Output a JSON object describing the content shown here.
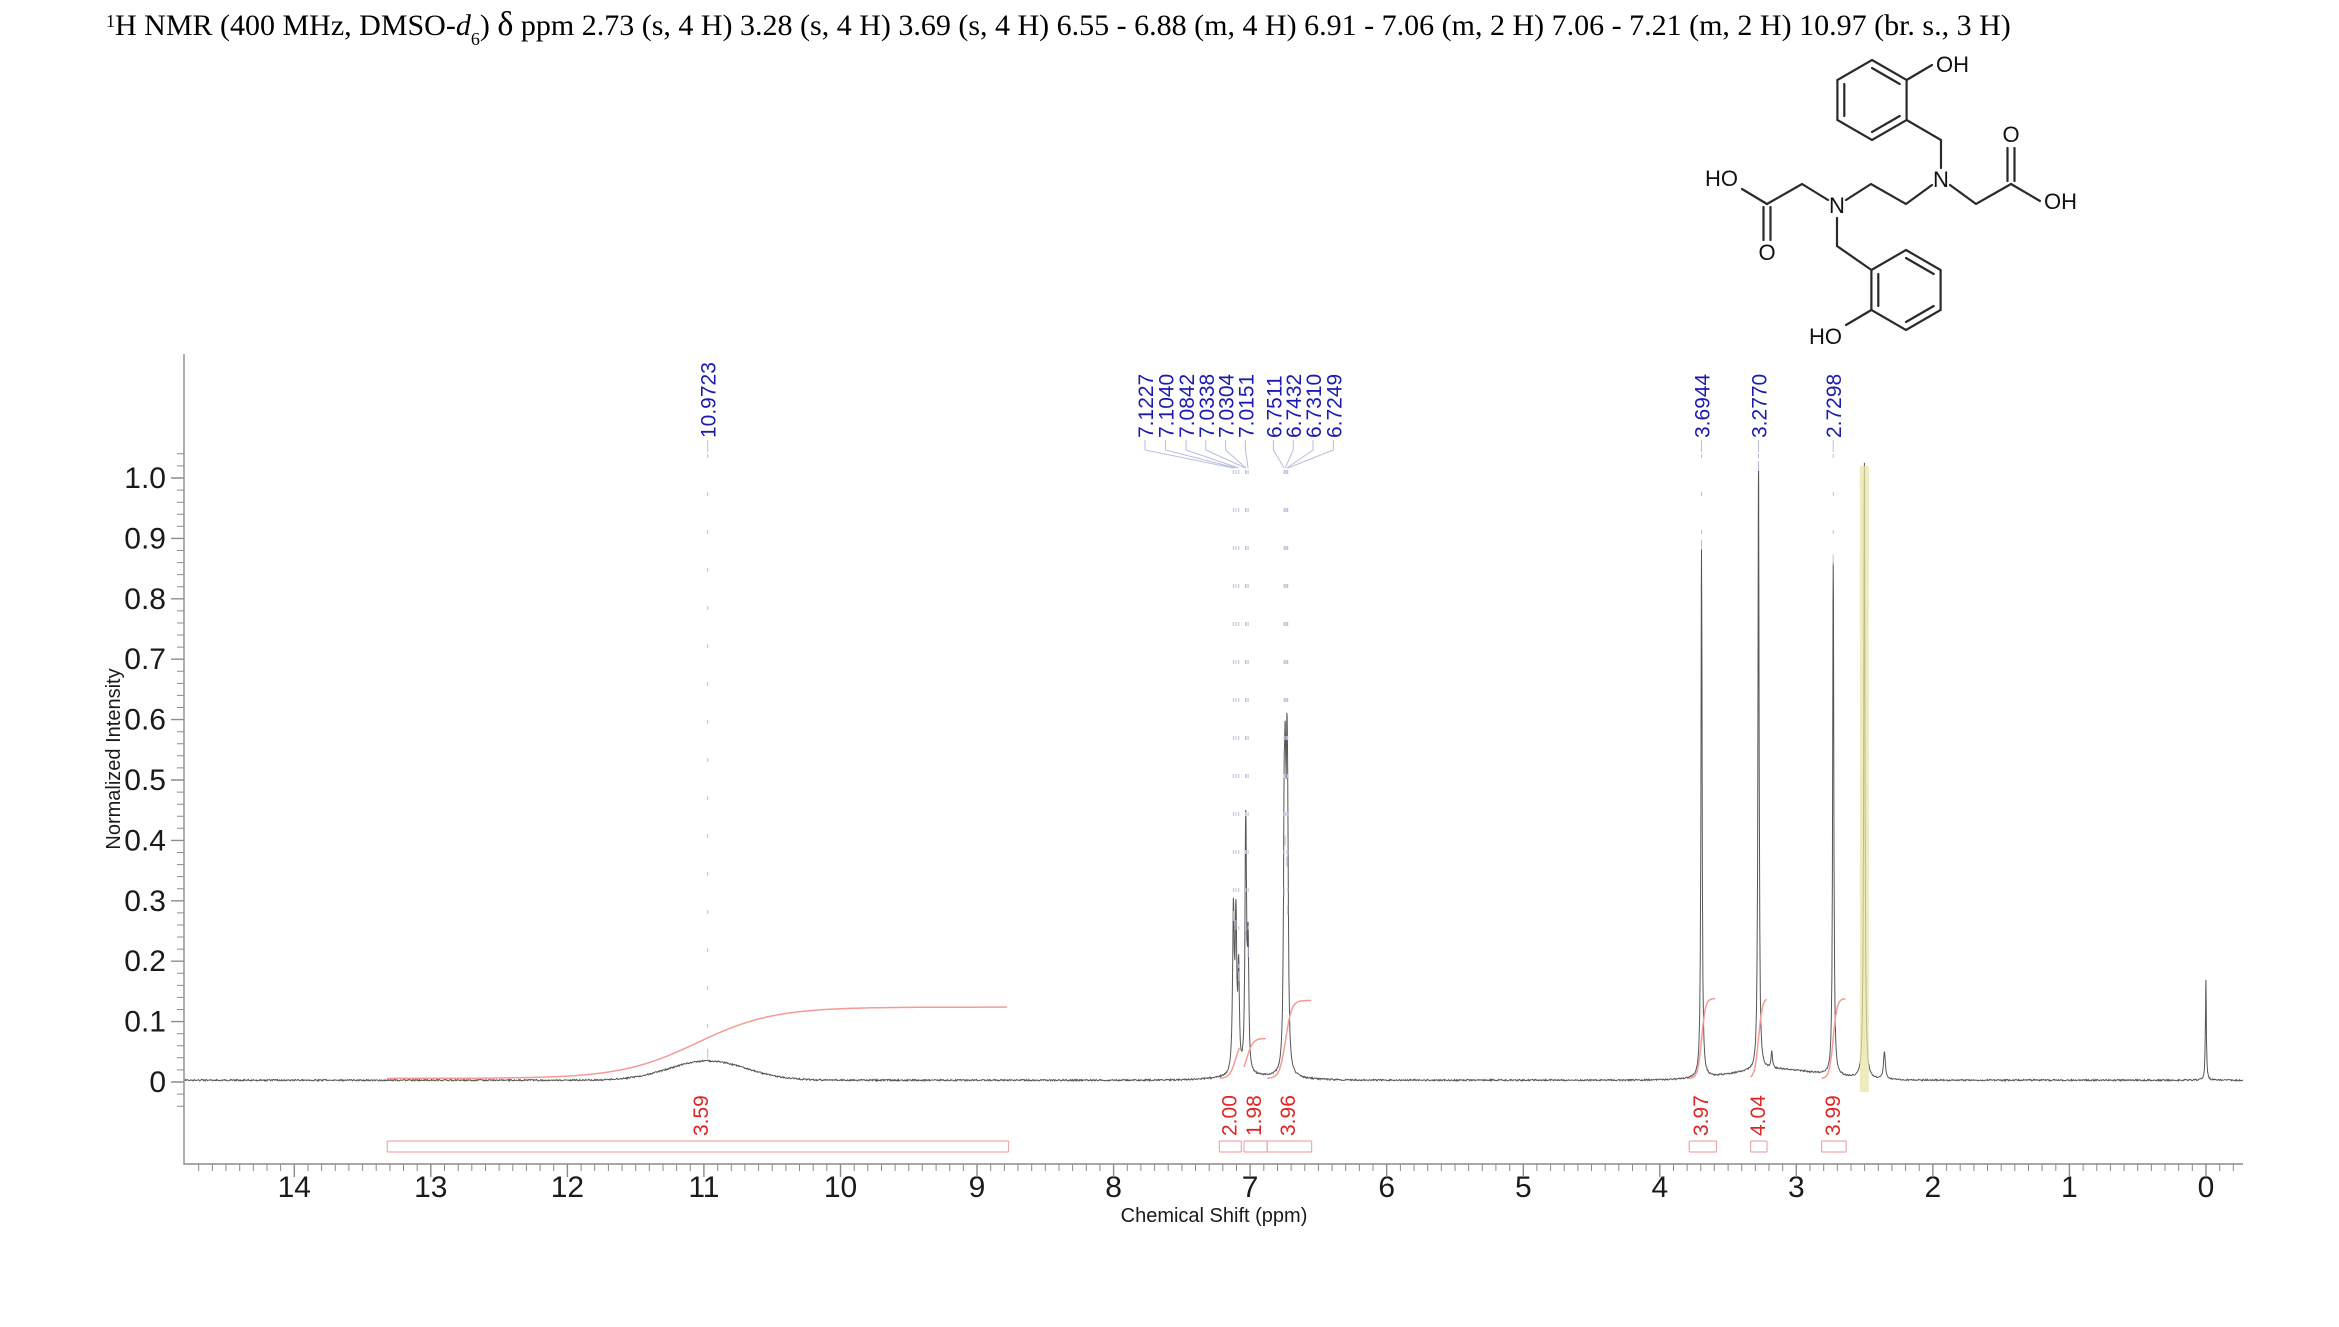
{
  "title": {
    "sup": "1",
    "part1": "H NMR (400 MHz, DMSO-",
    "solvent_italic": "d",
    "solvent_sub": "6",
    "part2": ") ",
    "delta": "δ",
    "part3": " ppm 2.73 (s, 4 H) 3.28 (s, 4 H) 3.69 (s, 4 H) 6.55 - 6.88 (m, 4 H) 6.91 - 7.06 (m, 2 H) 7.06 - 7.21 (m, 2 H) 10.97 (br. s., 3 H)"
  },
  "structure": {
    "labels": {
      "oh_top": "OH",
      "o_right": "O",
      "oh_right": "OH",
      "ho_left": "HO",
      "o_left": "O",
      "n_right": "N",
      "n_left": "N",
      "ho_bottom": "HO"
    }
  },
  "chart_data": {
    "type": "line",
    "title": "",
    "xlabel": "Chemical Shift (ppm)",
    "ylabel": "Normalized Intensity",
    "xlim": [
      14.8,
      -0.27
    ],
    "ylim": [
      0,
      1.2
    ],
    "x_axis_reversed": true,
    "grid": false,
    "x_ticks": [
      14,
      13,
      12,
      11,
      10,
      9,
      8,
      7,
      6,
      5,
      4,
      3,
      2,
      1,
      0
    ],
    "y_ticks": [
      {
        "v": 0,
        "label": "0"
      },
      {
        "v": 0.1,
        "label": "0.1"
      },
      {
        "v": 0.2,
        "label": "0.2"
      },
      {
        "v": 0.3,
        "label": "0.3"
      },
      {
        "v": 0.4,
        "label": "0.4"
      },
      {
        "v": 0.5,
        "label": "0.5"
      },
      {
        "v": 0.6,
        "label": "0.6"
      },
      {
        "v": 0.7,
        "label": "0.7"
      },
      {
        "v": 0.8,
        "label": "0.8"
      },
      {
        "v": 0.9,
        "label": "0.9"
      },
      {
        "v": 1.0,
        "label": "1.0"
      }
    ],
    "peaks": [
      {
        "p": 10.9723,
        "h": 0.032,
        "w": 0.4,
        "g": 1
      },
      {
        "p": 7.1227,
        "h": 0.26,
        "w": 0.007
      },
      {
        "p": 7.104,
        "h": 0.245,
        "w": 0.007
      },
      {
        "p": 7.0842,
        "h": 0.16,
        "w": 0.006
      },
      {
        "p": 7.0338,
        "h": 0.22,
        "w": 0.006
      },
      {
        "p": 7.0304,
        "h": 0.225,
        "w": 0.006
      },
      {
        "p": 7.0151,
        "h": 0.2,
        "w": 0.006
      },
      {
        "p": 6.7511,
        "h": 0.3,
        "w": 0.006
      },
      {
        "p": 6.7432,
        "h": 0.385,
        "w": 0.007
      },
      {
        "p": 6.731,
        "h": 0.35,
        "w": 0.006
      },
      {
        "p": 6.7249,
        "h": 0.27,
        "w": 0.006
      },
      {
        "p": 3.6944,
        "h": 0.875,
        "w": 0.005
      },
      {
        "p": 3.277,
        "h": 1.005,
        "w": 0.005
      },
      {
        "p": 2.7298,
        "h": 0.85,
        "w": 0.005
      },
      {
        "p": 2.502,
        "h": 1.02,
        "w": 0.005
      },
      {
        "p": 2.355,
        "h": 0.045,
        "w": 0.008
      },
      {
        "p": 3.18,
        "h": 0.028,
        "w": 0.006
      },
      {
        "p": 0.001,
        "h": 0.165,
        "w": 0.004
      },
      {
        "p": 3.15,
        "h": 0.018,
        "w": 0.45,
        "g": 1
      },
      {
        "p": 6.95,
        "h": 0.006,
        "w": 0.35,
        "g": 1
      }
    ],
    "peak_labels": [
      {
        "value": "10.9723",
        "ppm": 10.9723,
        "lx": 10.9723
      },
      {
        "value": "7.1227",
        "ppm": 7.1227,
        "lx": 7.77
      },
      {
        "value": "7.1040",
        "ppm": 7.104,
        "lx": 7.62
      },
      {
        "value": "7.0842",
        "ppm": 7.0842,
        "lx": 7.47
      },
      {
        "value": "7.0338",
        "ppm": 7.0338,
        "lx": 7.325
      },
      {
        "value": "7.0304",
        "ppm": 7.0304,
        "lx": 7.18
      },
      {
        "value": "7.0151",
        "ppm": 7.0151,
        "lx": 7.035
      },
      {
        "value": "6.7511",
        "ppm": 6.7511,
        "lx": 6.83
      },
      {
        "value": "6.7432",
        "ppm": 6.7432,
        "lx": 6.685
      },
      {
        "value": "6.7310",
        "ppm": 6.731,
        "lx": 6.54
      },
      {
        "value": "6.7249",
        "ppm": 6.7249,
        "lx": 6.39
      },
      {
        "value": "3.6944",
        "ppm": 3.6944,
        "lx": 3.6944
      },
      {
        "value": "3.2770",
        "ppm": 3.277,
        "lx": 3.277
      },
      {
        "value": "2.7298",
        "ppm": 2.7298,
        "lx": 2.7298
      }
    ],
    "integrals": [
      {
        "label": "3.59",
        "from": 13.32,
        "to": 8.77,
        "h": 0.118,
        "c": 11.05,
        "w": 0.28,
        "lp": 11.03
      },
      {
        "label": "2.00",
        "from": 7.225,
        "to": 7.065,
        "h": 0.066,
        "c": 7.105,
        "w": 0.022,
        "lp": 7.16
      },
      {
        "label": "1.98",
        "from": 7.045,
        "to": 6.875,
        "h": 0.066,
        "c": 7.025,
        "w": 0.022,
        "lp": 6.98
      },
      {
        "label": "3.96",
        "from": 6.875,
        "to": 6.55,
        "h": 0.129,
        "c": 6.74,
        "w": 0.022,
        "lp": 6.73
      },
      {
        "label": "3.97",
        "from": 3.785,
        "to": 3.585,
        "h": 0.132,
        "c": 3.694,
        "w": 0.014,
        "lp": 3.705
      },
      {
        "label": "4.04",
        "from": 3.335,
        "to": 3.215,
        "h": 0.133,
        "c": 3.277,
        "w": 0.014,
        "lp": 3.29
      },
      {
        "label": "3.99",
        "from": 2.815,
        "to": 2.635,
        "h": 0.132,
        "c": 2.73,
        "w": 0.014,
        "lp": 2.74
      }
    ],
    "solvent_band": {
      "ppm": 2.502,
      "top": 1.02,
      "color": "#e8e4a6"
    },
    "colors": {
      "trace": "#565656",
      "peak_label": "#1b1bb3",
      "leader": "#b9bedf",
      "integral_curve": "#f59b93",
      "integral_label": "#e02424",
      "bracket": "#f2a9a9",
      "axis": "#8c8c8c",
      "tick_label": "#1a1a1a",
      "solvent_band": "#e8e4a6"
    }
  }
}
